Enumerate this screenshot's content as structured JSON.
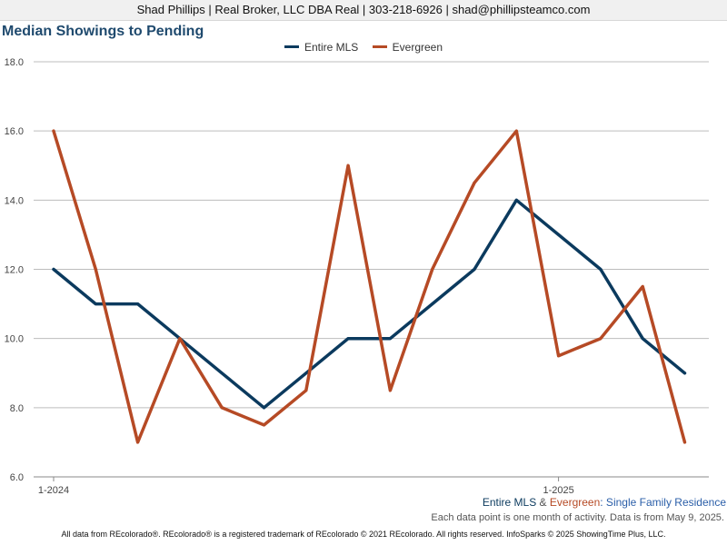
{
  "header": {
    "contact": "Shad Phillips | Real Broker, LLC DBA Real | 303-218-6926 | shad@phillipsteamco.com"
  },
  "colors": {
    "entire_mls": "#0b3a5e",
    "evergreen": "#b64a25",
    "grid": "#bdbdbd"
  },
  "chart_data": {
    "type": "line",
    "title": "Median Showings to Pending",
    "ylim": [
      6.0,
      18.0
    ],
    "y_ticks": [
      "6.0",
      "8.0",
      "10.0",
      "12.0",
      "14.0",
      "16.0",
      "18.0"
    ],
    "x_tick_labels": [
      {
        "label": "1-2024",
        "index": 0
      },
      {
        "label": "1-2025",
        "index": 12
      }
    ],
    "legend_position": "top-center",
    "grid": true,
    "x": [
      "1-2024",
      "2-2024",
      "3-2024",
      "4-2024",
      "5-2024",
      "6-2024",
      "7-2024",
      "8-2024",
      "9-2024",
      "10-2024",
      "11-2024",
      "12-2024",
      "1-2025",
      "2-2025",
      "3-2025",
      "4-2025"
    ],
    "series": [
      {
        "name": "Entire MLS",
        "color": "#0b3a5e",
        "values": [
          12,
          11,
          11,
          10,
          9,
          8,
          9,
          10,
          10,
          11,
          12,
          14,
          13,
          12,
          10,
          9
        ]
      },
      {
        "name": "Evergreen",
        "color": "#b64a25",
        "values": [
          16,
          12,
          7,
          10,
          8,
          7.5,
          8.5,
          15,
          8.5,
          12,
          14.5,
          16,
          9.5,
          10,
          11.5,
          7
        ]
      }
    ]
  },
  "subtitle": {
    "part1": "Entire MLS",
    "part2": " & ",
    "part3": "Evergreen",
    "part4": ": Single Family Residence",
    "note": "Each data point is one month of activity. Data is from May 9, 2025."
  },
  "footer": "All data from REcolorado®. REcolorado® is a registered trademark of REcolorado © 2021 REcolorado. All rights reserved. InfoSparks © 2025 ShowingTime Plus, LLC."
}
